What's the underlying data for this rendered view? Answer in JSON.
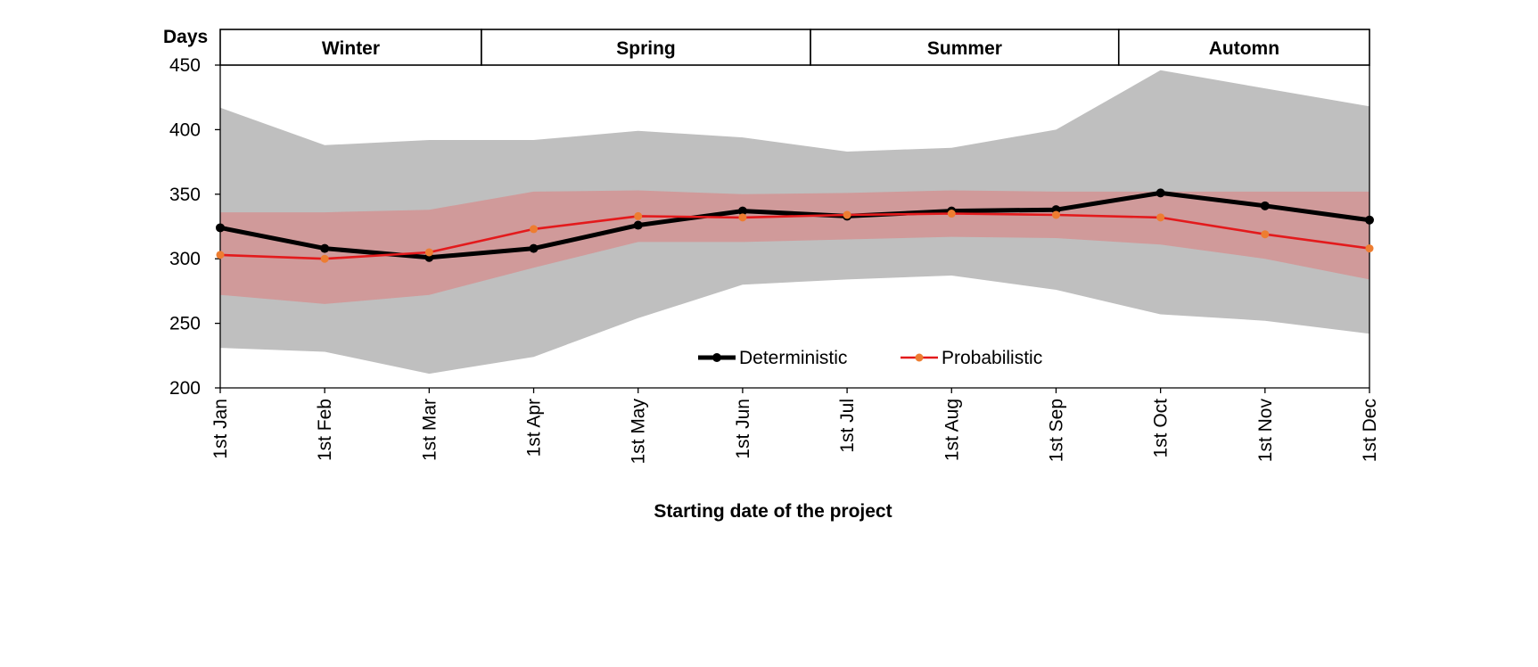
{
  "chart_data": {
    "type": "line",
    "xlabel": "Starting date of the project",
    "ylabel": "Days",
    "ylim": [
      200,
      450
    ],
    "yticks": [
      200,
      250,
      300,
      350,
      400,
      450
    ],
    "categories": [
      "1st Jan",
      "1st Feb",
      "1st Mar",
      "1st Apr",
      "1st May",
      "1st Jun",
      "1st Jul",
      "1st Aug",
      "1st Sep",
      "1st Oct",
      "1st Nov",
      "1st Dec"
    ],
    "seasons": [
      {
        "label": "Winter",
        "from": 0,
        "to": 2.5
      },
      {
        "label": "Spring",
        "from": 2.5,
        "to": 5.65
      },
      {
        "label": "Summer",
        "from": 5.65,
        "to": 8.6
      },
      {
        "label": "Automn",
        "from": 8.6,
        "to": 11
      }
    ],
    "series": [
      {
        "name": "Deterministic",
        "color": "#000000",
        "values": [
          324,
          308,
          301,
          308,
          326,
          337,
          333,
          337,
          338,
          351,
          341,
          330
        ]
      },
      {
        "name": "Probabilistic",
        "color": "#e31a1c",
        "marker_color": "#ed7d31",
        "values": [
          303,
          300,
          305,
          323,
          333,
          332,
          334,
          335,
          334,
          332,
          319,
          308
        ]
      }
    ],
    "bands": [
      {
        "kind": "outer",
        "color": "#bfbfbf",
        "upper": [
          417,
          388,
          392,
          392,
          399,
          394,
          383,
          386,
          400,
          446,
          432,
          418
        ],
        "lower": [
          231,
          228,
          211,
          224,
          254,
          280,
          284,
          287,
          276,
          257,
          252,
          242
        ]
      },
      {
        "kind": "inner",
        "color": "#d09a9a",
        "upper": [
          336,
          336,
          338,
          352,
          353,
          350,
          351,
          353,
          352,
          352,
          352,
          352
        ],
        "lower": [
          272,
          265,
          272,
          293,
          313,
          313,
          315,
          317,
          316,
          311,
          300,
          284
        ]
      }
    ],
    "legend_position": "bottom-center",
    "grid": false
  }
}
